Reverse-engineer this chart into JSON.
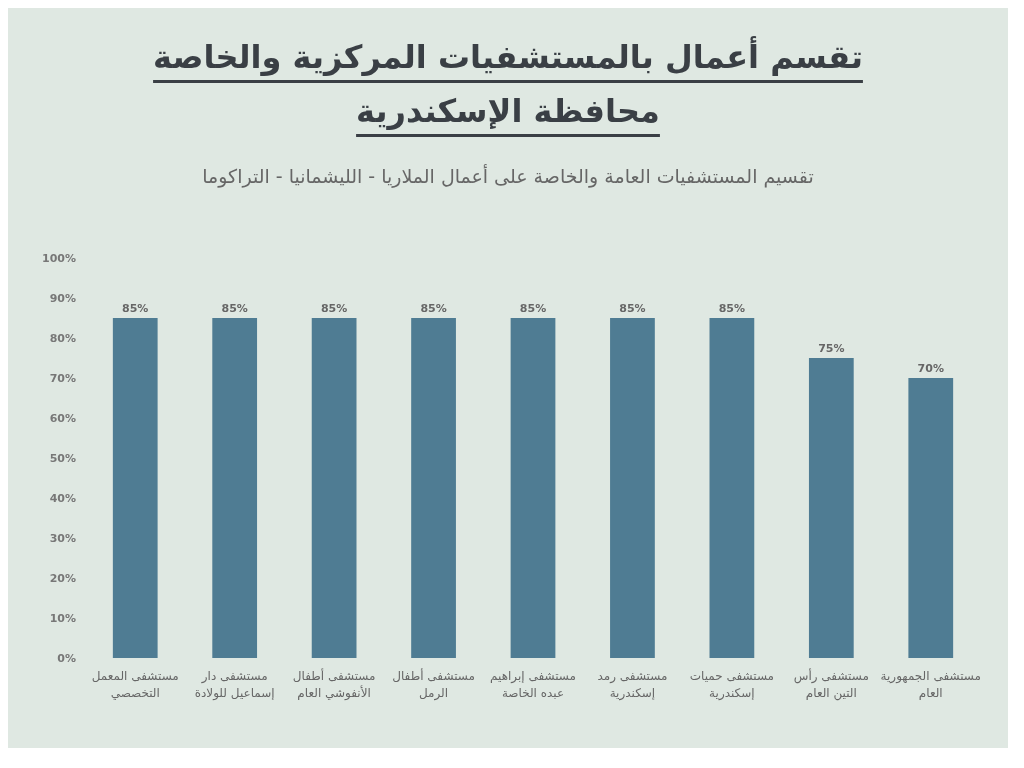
{
  "chart_data": {
    "type": "bar",
    "title": "تقسم أعمال بالمستشفيات المركزية والخاصة\nمحافظة الإسكندرية",
    "subtitle": "تقسيم المستشفيات العامة والخاصة على أعمال الملاريا - الليشمانيا - التراكوما",
    "categories": [
      "مستشفى المعمل التخصصي",
      "مستشفى دار إسماعيل للولادة",
      "مستشفى أطفال الأنفوشي العام",
      "مستشفى أطفال الرمل",
      "مستشفى إبراهيم عبده الخاصة",
      "مستشفى رمد إسكندرية",
      "مستشفى حميات إسكندرية",
      "مستشفى رأس التين العام",
      "مستشفى الجمهورية العام"
    ],
    "values": [
      85,
      85,
      85,
      85,
      85,
      85,
      85,
      75,
      70
    ],
    "color": "#4f7c93",
    "ylim": [
      0,
      100
    ],
    "yticks": [
      {
        "value": 0,
        "label": "0%"
      },
      {
        "value": 10,
        "label": "10%"
      },
      {
        "value": 20,
        "label": "20%"
      },
      {
        "value": 30,
        "label": "30%"
      },
      {
        "value": 40,
        "label": "40%"
      },
      {
        "value": 50,
        "label": "50%"
      },
      {
        "value": 60,
        "label": "60%"
      },
      {
        "value": 70,
        "label": "70%"
      },
      {
        "value": 80,
        "label": "80%"
      },
      {
        "value": 90,
        "label": "90%"
      },
      {
        "value": 100,
        "label": "100%"
      }
    ],
    "data_labels": true,
    "value_labels": [
      "85%",
      "85%",
      "85%",
      "85%",
      "85%",
      "85%",
      "85%",
      "75%",
      "70%"
    ]
  }
}
